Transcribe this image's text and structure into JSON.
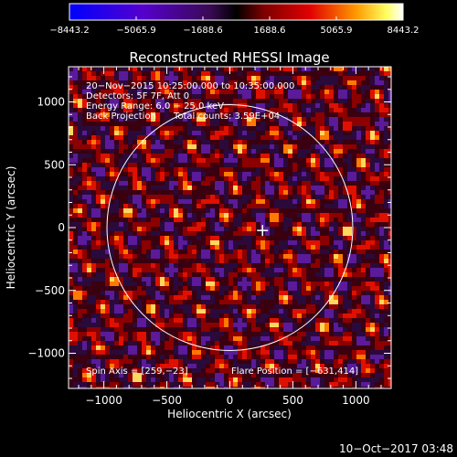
{
  "chart_data": {
    "type": "heatmap",
    "title": "Reconstructed RHESSI Image",
    "xlabel": "Heliocentric X (arcsec)",
    "ylabel": "Heliocentric Y (arcsec)",
    "xlim": [
      -1280,
      1280
    ],
    "ylim": [
      -1280,
      1280
    ],
    "xticks": [
      -1000,
      -500,
      0,
      500,
      1000
    ],
    "yticks": [
      -1000,
      -500,
      0,
      500,
      1000
    ],
    "xtick_labels": [
      "−1000",
      "−500",
      "0",
      "500",
      "1000"
    ],
    "ytick_labels": [
      "−1000",
      "−500",
      "0",
      "500",
      "1000"
    ],
    "colorbar": {
      "range": [
        -8443.2,
        8443.2
      ],
      "ticks": [
        -8443.2,
        -5065.9,
        -1688.6,
        1688.6,
        5065.9,
        8443.2
      ],
      "tick_labels": [
        "−8443.2",
        "−5065.9",
        "−1688.6",
        "1688.6",
        "5065.9",
        "8443.2"
      ]
    },
    "annotations": [
      "20−Nov−2015 10:25:00.000 to 10:35:00.000",
      "Detectors: 5F 7F, Att 0",
      "Energy Range: 6.0 − 25.0 keV",
      "Back Projection      Total counts: 3.59E+04"
    ],
    "spin_axis_label": "Spin Axis = [259,−23]",
    "flare_position_label": "Flare Position = [−631,414]",
    "solar_disk_radius_arcsec": 975,
    "marker_position": [
      259,
      -23
    ],
    "colors": {
      "background": "#000000",
      "limb": "#ffffff"
    }
  },
  "footer": {
    "timestamp": "10−Oct−2017 03:48"
  }
}
